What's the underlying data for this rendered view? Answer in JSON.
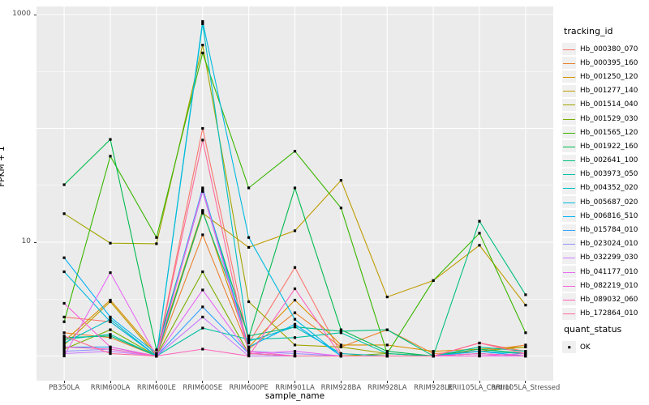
{
  "figure": {
    "background": "#FFFFFF",
    "panel_background": "#EBEBEB",
    "grid_color": "#FFFFFF",
    "axis_text_color": "#4D4D4D",
    "point_color": "#000000"
  },
  "chart_data": {
    "type": "line",
    "title": "",
    "xlabel": "sample_name",
    "ylabel": "FPKM + 1",
    "y_scale": "log10",
    "ylim": [
      0.6,
      1150
    ],
    "grid": true,
    "legend_position": "right",
    "y_ticks": [
      {
        "value": 1000,
        "label": "1000"
      },
      {
        "value": 10,
        "label": "10"
      }
    ],
    "y_gridlines": [
      1,
      10,
      100,
      1000
    ],
    "categories": [
      "PB350LA",
      "RRIM600LA",
      "RRIM600LE",
      "RRIM600SE",
      "RRIM600PE",
      "RRIM901LA",
      "RRIM928BA",
      "RRIM928LA",
      "RRIM928LE",
      "RRII105LA_Control",
      "RRII105LA_Stressed"
    ],
    "legend_title": "tracking_id",
    "series": [
      {
        "id": "Hb_000380_070",
        "color": "#F8766D",
        "values": [
          2.2,
          2.0,
          1.0,
          100,
          1.3,
          6.0,
          1.05,
          1.0,
          1.0,
          1.3,
          1.1
        ]
      },
      {
        "id": "Hb_000395_160",
        "color": "#EA8331",
        "values": [
          1.6,
          1.45,
          1.0,
          11.6,
          1.15,
          2.4,
          1.2,
          1.7,
          1.05,
          1.1,
          1.25
        ]
      },
      {
        "id": "Hb_001250_120",
        "color": "#D89000",
        "values": [
          1.35,
          3.1,
          1.05,
          19,
          1.2,
          3.1,
          1.25,
          1.25,
          1.1,
          1.15,
          1.2
        ]
      },
      {
        "id": "Hb_001277_140",
        "color": "#C09B00",
        "values": [
          1.25,
          3.0,
          1.0,
          18,
          9.0,
          12.6,
          35,
          3.3,
          4.6,
          9.4,
          2.8
        ]
      },
      {
        "id": "Hb_001514_040",
        "color": "#A3A500",
        "values": [
          17.8,
          9.8,
          9.7,
          540,
          3.0,
          1.25,
          1.2,
          1.05,
          1.0,
          1.1,
          1.2
        ]
      },
      {
        "id": "Hb_001529_030",
        "color": "#7CAE00",
        "values": [
          1.15,
          1.7,
          1.0,
          5.5,
          1.05,
          1.0,
          1.0,
          1.05,
          1.0,
          1.05,
          1.0
        ]
      },
      {
        "id": "Hb_001565_120",
        "color": "#39B600",
        "values": [
          2.0,
          57,
          11,
          460,
          30,
          63,
          20,
          1.05,
          4.6,
          12,
          1.6
        ]
      },
      {
        "id": "Hb_001922_160",
        "color": "#00BB4E",
        "values": [
          32,
          80,
          1.13,
          28,
          1.45,
          30,
          1.7,
          1.1,
          1.0,
          1.15,
          1.05
        ]
      },
      {
        "id": "Hb_002641_100",
        "color": "#00BF7D",
        "values": [
          1.45,
          1.5,
          1.0,
          18.5,
          1.5,
          1.8,
          1.65,
          1.7,
          1.0,
          15.3,
          3.45
        ]
      },
      {
        "id": "Hb_003973_050",
        "color": "#00C1A3",
        "values": [
          1.4,
          1.55,
          1.0,
          1.76,
          1.4,
          1.45,
          1.6,
          1.05,
          1.0,
          1.2,
          1.1
        ]
      },
      {
        "id": "Hb_004352_020",
        "color": "#00BFC4",
        "values": [
          1.3,
          2.1,
          1.0,
          830,
          1.35,
          1.8,
          1.05,
          1.0,
          1.0,
          1.1,
          1.05
        ]
      },
      {
        "id": "Hb_005687_020",
        "color": "#00BAE0",
        "values": [
          5.5,
          2.0,
          1.0,
          870,
          11,
          2.1,
          1.0,
          1.0,
          1.0,
          1.05,
          1.0
        ]
      },
      {
        "id": "Hb_006816_510",
        "color": "#00B0F6",
        "values": [
          7.3,
          2.2,
          1.05,
          30,
          1.2,
          1.9,
          1.0,
          1.0,
          1.0,
          1.1,
          1.0
        ]
      },
      {
        "id": "Hb_015784_010",
        "color": "#35A2FF",
        "values": [
          1.2,
          1.2,
          1.0,
          2.7,
          1.05,
          1.0,
          1.0,
          1.0,
          1.0,
          1.0,
          1.0
        ]
      },
      {
        "id": "Hb_023024_010",
        "color": "#9590FF",
        "values": [
          1.1,
          1.15,
          1.0,
          28,
          1.1,
          1.05,
          1.0,
          1.0,
          1.0,
          1.0,
          1.0
        ]
      },
      {
        "id": "Hb_032299_030",
        "color": "#C77CFF",
        "values": [
          1.05,
          1.1,
          1.0,
          2.2,
          1.0,
          1.0,
          1.0,
          1.0,
          1.0,
          1.05,
          1.0
        ]
      },
      {
        "id": "Hb_041177_010",
        "color": "#E76BF3",
        "values": [
          1.0,
          5.4,
          1.0,
          3.8,
          1.05,
          1.1,
          1.0,
          1.0,
          1.0,
          1.0,
          1.0
        ]
      },
      {
        "id": "Hb_082219_010",
        "color": "#FA62DB",
        "values": [
          2.9,
          1.2,
          1.0,
          29,
          1.1,
          1.0,
          1.0,
          1.0,
          1.0,
          1.0,
          1.05
        ]
      },
      {
        "id": "Hb_089032_060",
        "color": "#FF62BC",
        "values": [
          1.2,
          1.15,
          1.0,
          1.15,
          1.0,
          3.9,
          1.0,
          1.0,
          1.0,
          1.05,
          1.0
        ]
      },
      {
        "id": "Hb_172864_010",
        "color": "#FF6A98",
        "values": [
          1.5,
          1.05,
          1.0,
          79,
          1.05,
          1.0,
          1.0,
          1.0,
          1.0,
          1.3,
          1.05
        ]
      }
    ],
    "quant_legend": {
      "title": "quant_status",
      "items": [
        {
          "label": "OK",
          "shape": "square",
          "color": "#000000"
        }
      ]
    }
  }
}
